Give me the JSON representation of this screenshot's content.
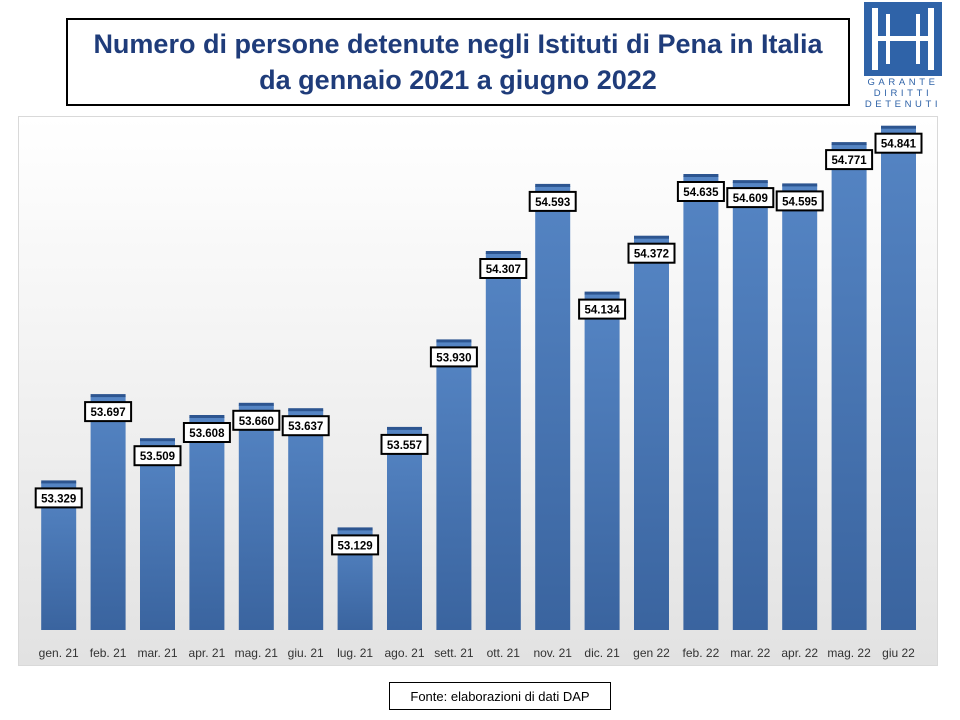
{
  "title": {
    "line1": "Numero di persone detenute negli Istituti di Pena in Italia",
    "line2": "da gennaio 2021 a giugno 2022"
  },
  "logo": {
    "line1": "GARANTE",
    "line2": "DIRITTI",
    "line3": "DETENUTI",
    "color": "#2f63a8"
  },
  "source": "Fonte: elaborazioni di dati DAP",
  "chart_data": {
    "type": "bar",
    "title": "Numero di persone detenute negli Istituti di Pena in Italia da gennaio 2021 a giugno 2022",
    "xlabel": "",
    "ylabel": "",
    "categories": [
      "gen. 21",
      "feb. 21",
      "mar. 21",
      "apr. 21",
      "mag. 21",
      "giu. 21",
      "lug. 21",
      "ago. 21",
      "sett. 21",
      "ott. 21",
      "nov. 21",
      "dic. 21",
      "gen 22",
      "feb. 22",
      "mar. 22",
      "apr. 22",
      "mag. 22",
      "giu 22"
    ],
    "values": [
      53329,
      53697,
      53509,
      53608,
      53660,
      53637,
      53129,
      53557,
      53930,
      54307,
      54593,
      54134,
      54372,
      54635,
      54609,
      54595,
      54771,
      54841
    ],
    "labels": [
      "53.329",
      "53.697",
      "53.509",
      "53.608",
      "53.660",
      "53.637",
      "53.129",
      "53.557",
      "53.930",
      "54.307",
      "54.593",
      "54.134",
      "54.372",
      "54.635",
      "54.609",
      "54.595",
      "54.771",
      "54.841"
    ],
    "ylim": [
      52700,
      54900
    ],
    "grid": false,
    "legend": "none",
    "bar_color": "#4a78b8"
  }
}
